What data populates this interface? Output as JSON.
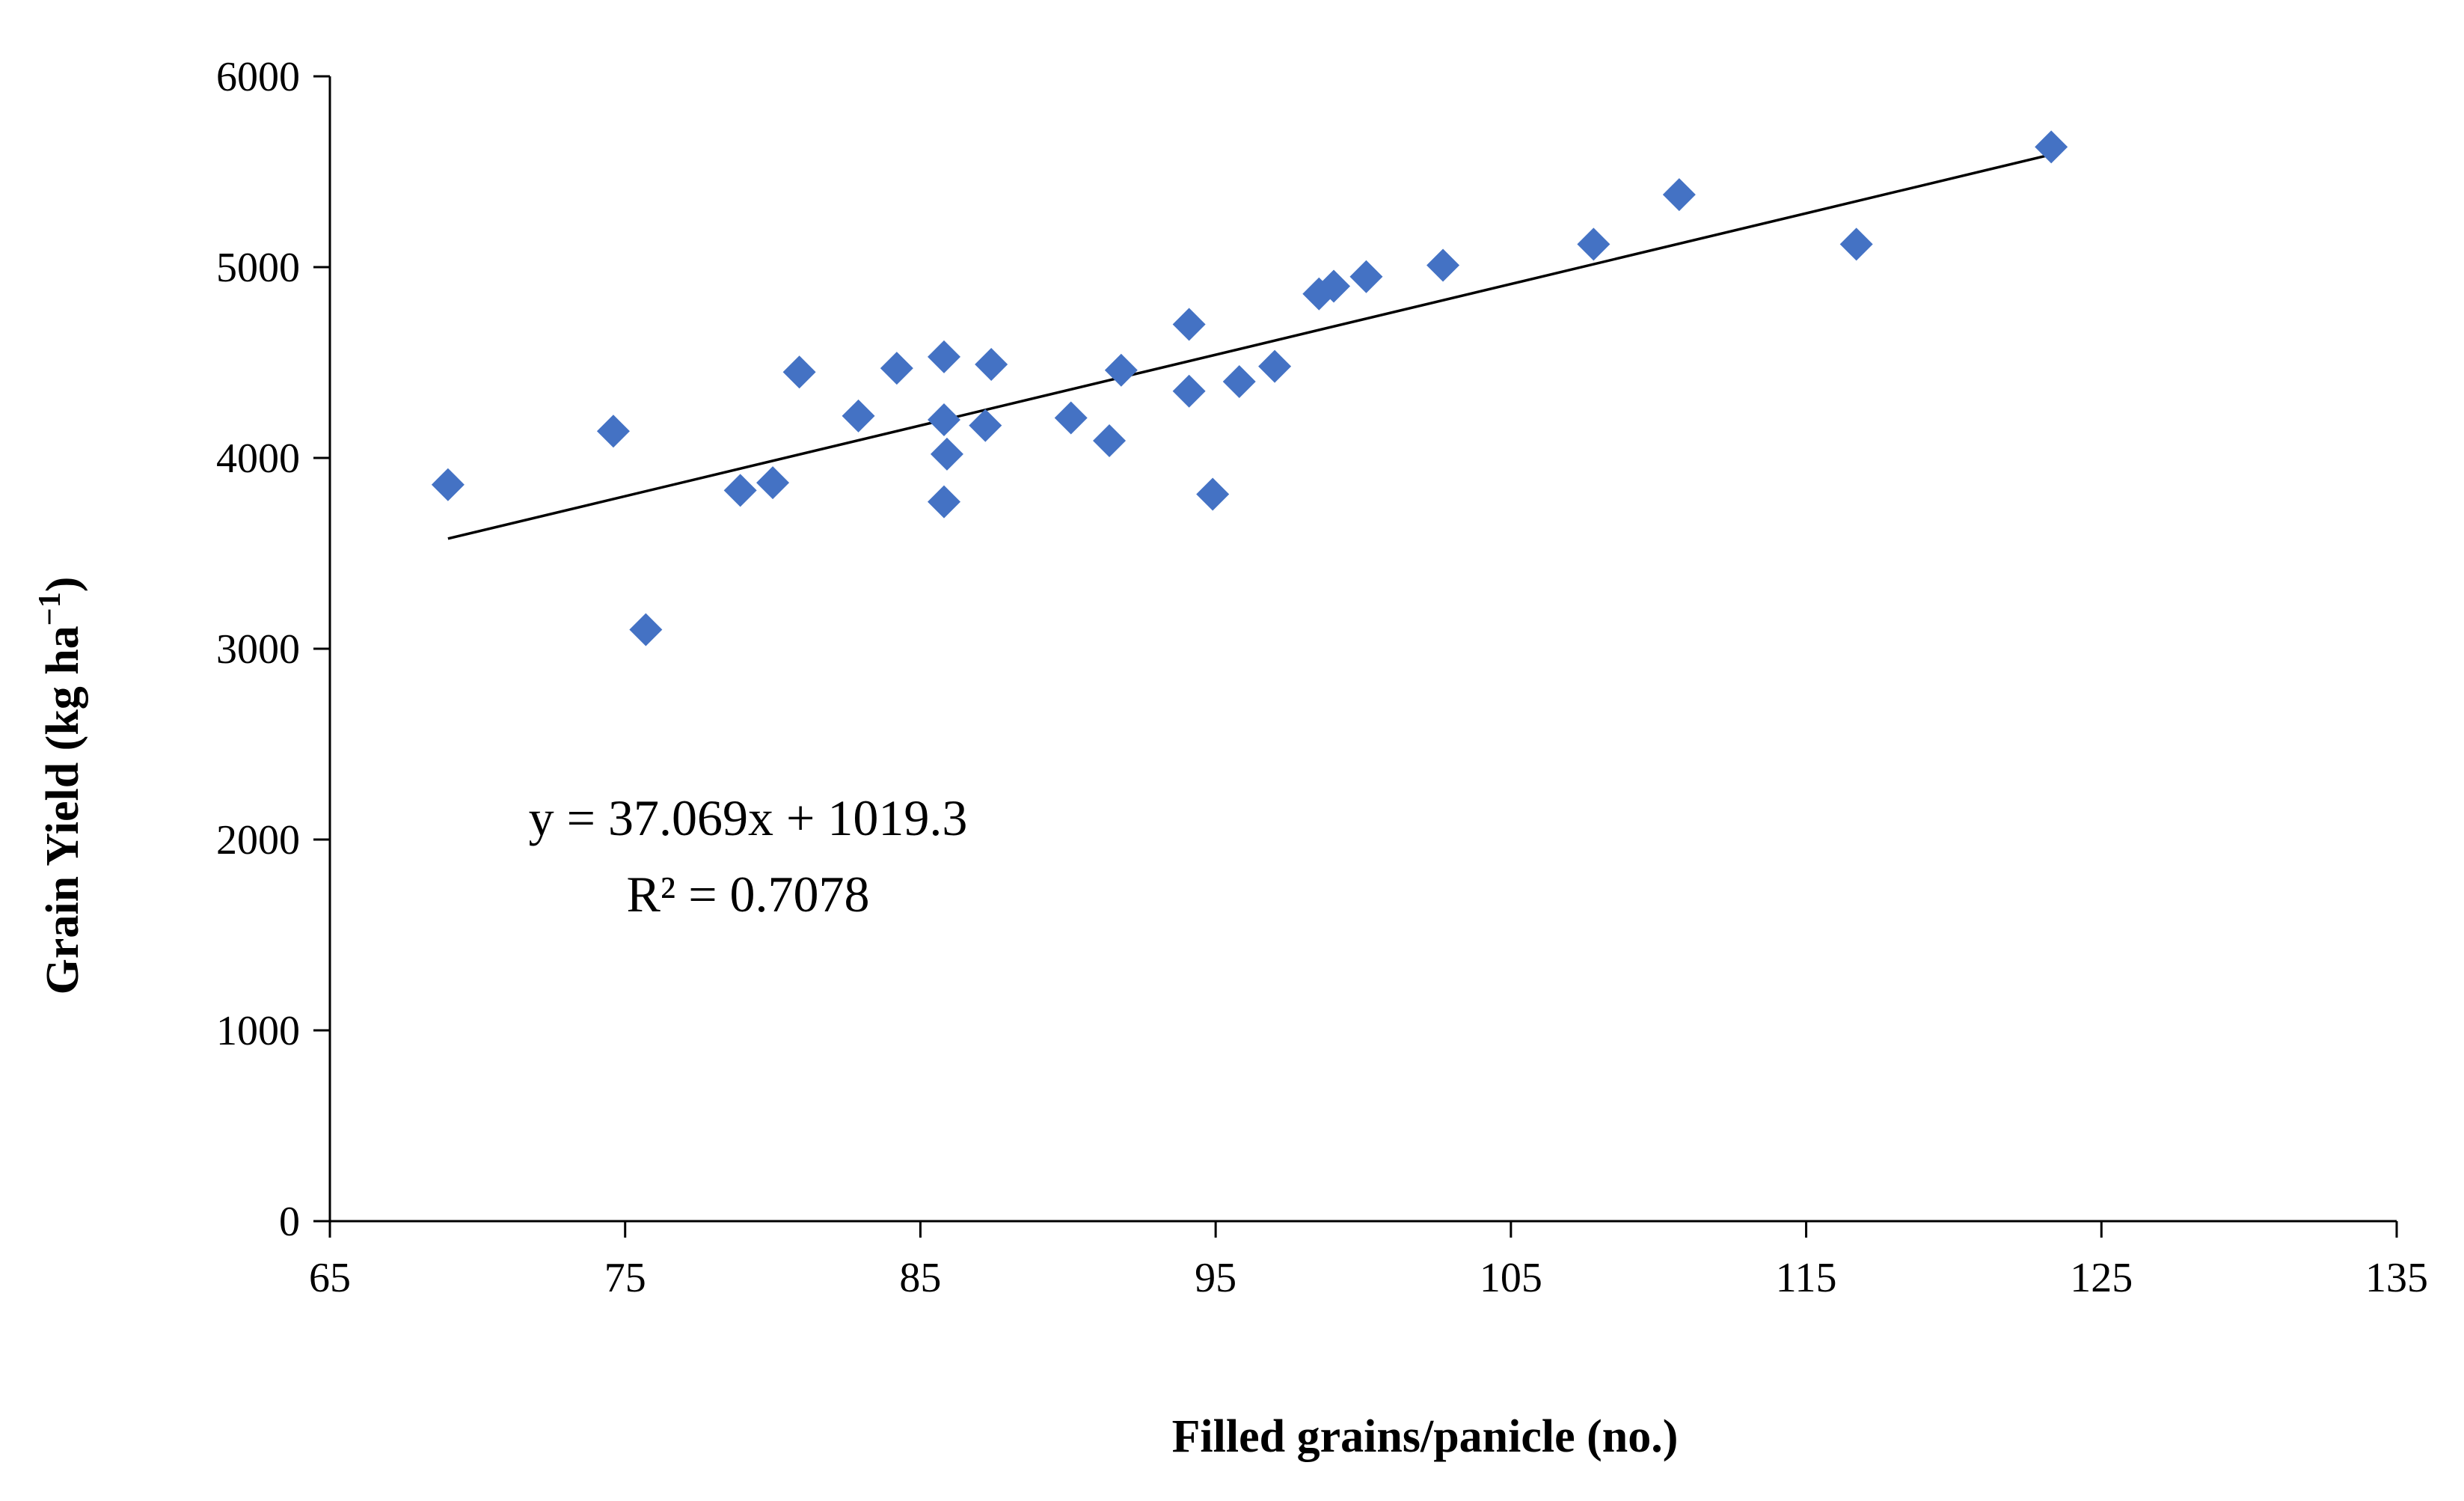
{
  "chart_data": {
    "type": "scatter",
    "title": "",
    "xlabel": "Filled grains/panicle (no.)",
    "ylabel_main": "Grain Yield (kg ha",
    "ylabel_sup": "−1",
    "ylabel_end": ")",
    "xlim": [
      65,
      135
    ],
    "ylim": [
      0,
      6000
    ],
    "xticks": [
      65,
      75,
      85,
      95,
      105,
      115,
      125,
      135
    ],
    "yticks": [
      0,
      1000,
      2000,
      3000,
      4000,
      5000,
      6000
    ],
    "grid": false,
    "marker_color": "#4472C4",
    "trendline_color": "#000000",
    "series": [
      {
        "name": "Grain Yield",
        "points": [
          [
            69.0,
            3860
          ],
          [
            74.6,
            4140
          ],
          [
            75.7,
            3100
          ],
          [
            78.9,
            3830
          ],
          [
            80.0,
            3870
          ],
          [
            80.9,
            4450
          ],
          [
            82.9,
            4220
          ],
          [
            84.2,
            4470
          ],
          [
            85.8,
            4530
          ],
          [
            85.8,
            4200
          ],
          [
            85.9,
            4020
          ],
          [
            85.8,
            3770
          ],
          [
            87.2,
            4170
          ],
          [
            87.4,
            4490
          ],
          [
            90.1,
            4210
          ],
          [
            91.4,
            4090
          ],
          [
            91.8,
            4460
          ],
          [
            94.1,
            4700
          ],
          [
            94.1,
            4350
          ],
          [
            94.9,
            3810
          ],
          [
            95.8,
            4400
          ],
          [
            97.0,
            4480
          ],
          [
            98.5,
            4860
          ],
          [
            99.0,
            4900
          ],
          [
            100.1,
            4950
          ],
          [
            102.7,
            5010
          ],
          [
            107.8,
            5120
          ],
          [
            110.7,
            5380
          ],
          [
            116.7,
            5120
          ],
          [
            123.3,
            5630
          ]
        ]
      }
    ],
    "trendline": {
      "slope": 37.069,
      "intercept": 1019.3,
      "x_range": [
        69.0,
        123.3
      ],
      "equation_label": "y = 37.069x + 1019.3",
      "r2_label": "R² = 0.7078"
    }
  }
}
